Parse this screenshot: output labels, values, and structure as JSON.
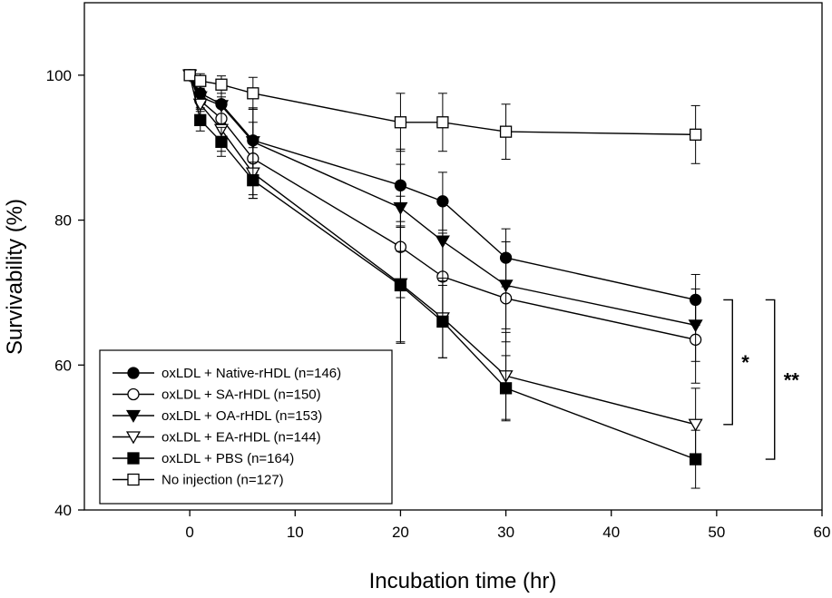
{
  "chart_data": {
    "type": "line",
    "xlabel": "Incubation time (hr)",
    "ylabel": "Survivability (%)",
    "xlim": [
      -10,
      60
    ],
    "ylim": [
      40,
      110
    ],
    "xticks": [
      0,
      10,
      20,
      30,
      40,
      50,
      60
    ],
    "yticks": [
      40,
      60,
      80,
      100
    ],
    "grid": false,
    "legend_position": "bottom-left",
    "series": [
      {
        "name": "oxLDL + Native-rHDL (n=146)",
        "marker": "filled-circle",
        "points": [
          {
            "x": 0,
            "y": 100,
            "err": 0
          },
          {
            "x": 1,
            "y": 97.5,
            "err": 1.5
          },
          {
            "x": 3,
            "y": 96.0,
            "err": 2.5
          },
          {
            "x": 6,
            "y": 91.0,
            "err": 4.5
          },
          {
            "x": 20,
            "y": 84.8,
            "err": 5.0
          },
          {
            "x": 24,
            "y": 82.6,
            "err": 4.0
          },
          {
            "x": 30,
            "y": 74.8,
            "err": 4.0
          },
          {
            "x": 48,
            "y": 69.0,
            "err": 3.5
          }
        ]
      },
      {
        "name": "oxLDL + SA-rHDL (n=150)",
        "marker": "open-circle",
        "points": [
          {
            "x": 0,
            "y": 100,
            "err": 0
          },
          {
            "x": 1,
            "y": 96.5,
            "err": 1.5
          },
          {
            "x": 3,
            "y": 94.0,
            "err": 3.0
          },
          {
            "x": 6,
            "y": 88.5,
            "err": 5.0
          },
          {
            "x": 20,
            "y": 76.3,
            "err": 7.0
          },
          {
            "x": 24,
            "y": 72.2,
            "err": 6.0
          },
          {
            "x": 30,
            "y": 69.2,
            "err": 6.0
          },
          {
            "x": 48,
            "y": 63.5,
            "err": 6.0
          }
        ]
      },
      {
        "name": "oxLDL + OA-rHDL (n=153)",
        "marker": "filled-triangle-down",
        "points": [
          {
            "x": 0,
            "y": 100,
            "err": 0
          },
          {
            "x": 1,
            "y": 97.0,
            "err": 1.5
          },
          {
            "x": 3,
            "y": 95.8,
            "err": 2.5
          },
          {
            "x": 6,
            "y": 90.8,
            "err": 4.5
          },
          {
            "x": 20,
            "y": 81.7,
            "err": 6.0
          },
          {
            "x": 24,
            "y": 77.1,
            "err": 5.5
          },
          {
            "x": 30,
            "y": 71.0,
            "err": 6.0
          },
          {
            "x": 48,
            "y": 65.5,
            "err": 5.0
          }
        ]
      },
      {
        "name": "oxLDL + EA-rHDL (n=144)",
        "marker": "open-triangle-down",
        "points": [
          {
            "x": 0,
            "y": 100,
            "err": 0
          },
          {
            "x": 1,
            "y": 96.0,
            "err": 1.5
          },
          {
            "x": 3,
            "y": 92.5,
            "err": 3.0
          },
          {
            "x": 6,
            "y": 86.5,
            "err": 3.5
          },
          {
            "x": 20,
            "y": 71.2,
            "err": 8.0
          },
          {
            "x": 24,
            "y": 66.5,
            "err": 5.5
          },
          {
            "x": 30,
            "y": 58.5,
            "err": 6.0
          },
          {
            "x": 48,
            "y": 51.8,
            "err": 5.0
          }
        ]
      },
      {
        "name": "oxLDL + PBS (n=164)",
        "marker": "filled-square",
        "points": [
          {
            "x": 0,
            "y": 100,
            "err": 0
          },
          {
            "x": 1,
            "y": 93.8,
            "err": 1.5
          },
          {
            "x": 3,
            "y": 90.8,
            "err": 2.0
          },
          {
            "x": 6,
            "y": 85.5,
            "err": 2.5
          },
          {
            "x": 20,
            "y": 71.0,
            "err": 8.0
          },
          {
            "x": 24,
            "y": 66.0,
            "err": 5.0
          },
          {
            "x": 30,
            "y": 56.8,
            "err": 4.5
          },
          {
            "x": 48,
            "y": 47.0,
            "err": 4.0
          }
        ]
      },
      {
        "name": "No injection (n=127)",
        "marker": "open-square",
        "points": [
          {
            "x": 0,
            "y": 100,
            "err": 0
          },
          {
            "x": 1,
            "y": 99.2,
            "err": 1.0
          },
          {
            "x": 3,
            "y": 98.7,
            "err": 1.2
          },
          {
            "x": 6,
            "y": 97.5,
            "err": 2.2
          },
          {
            "x": 20,
            "y": 93.5,
            "err": 4.0
          },
          {
            "x": 24,
            "y": 93.5,
            "err": 4.0
          },
          {
            "x": 30,
            "y": 92.2,
            "err": 3.8
          },
          {
            "x": 48,
            "y": 91.8,
            "err": 4.0
          }
        ]
      }
    ],
    "significance": [
      {
        "label": "*",
        "from_y": 69.0,
        "to_y": 51.8,
        "at_x": 51.5
      },
      {
        "label": "**",
        "from_y": 69.0,
        "to_y": 47.0,
        "at_x": 55.5
      }
    ]
  }
}
